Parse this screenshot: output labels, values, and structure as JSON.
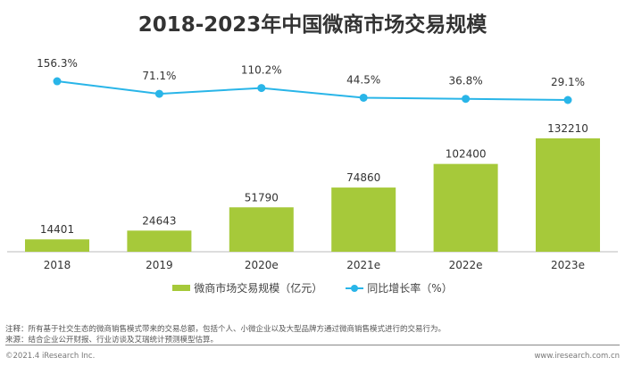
{
  "chart_data": {
    "type": "bar+line",
    "title": "2018-2023年中国微商市场交易规模",
    "categories": [
      "2018",
      "2019",
      "2020e",
      "2021e",
      "2022e",
      "2023e"
    ],
    "series": [
      {
        "name": "微商市场交易规模（亿元）",
        "type": "bar",
        "color": "#a6c93a",
        "values": [
          14401,
          24643,
          51790,
          74860,
          102400,
          132210
        ]
      },
      {
        "name": "同比增长率（%）",
        "type": "line",
        "color": "#29b5e8",
        "values": [
          156.3,
          71.1,
          110.2,
          44.5,
          36.8,
          29.1
        ],
        "labels": [
          "156.3%",
          "71.1%",
          "110.2%",
          "44.5%",
          "36.8%",
          "29.1%"
        ]
      }
    ],
    "legend": "bottom",
    "grid": false
  },
  "notes": {
    "note": "注释：所有基于社交生态的微商销售模式带来的交易总额，包括个人、小微企业以及大型品牌方通过微商销售模式进行的交易行为。",
    "source": "来源：结合企业公开财报、行业访谈及艾瑞统计预测模型估算。"
  },
  "footer": {
    "copyright": "©2021.4 iResearch Inc.",
    "website": "www.iresearch.com.cn"
  }
}
